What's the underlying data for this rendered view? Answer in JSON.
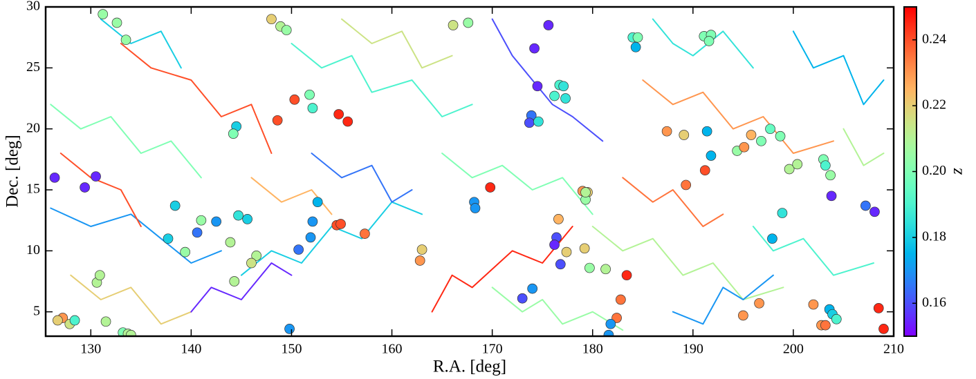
{
  "chart_data": {
    "type": "scatter",
    "xlabel": "R.A. [deg]",
    "ylabel": "Dec. [deg]",
    "xlim": [
      125.5,
      210
    ],
    "ylim": [
      3,
      30
    ],
    "xticks": [
      130,
      140,
      150,
      160,
      170,
      180,
      190,
      200,
      210
    ],
    "yticks": [
      5,
      10,
      15,
      20,
      25,
      30
    ],
    "colormap": "rainbow",
    "colorbar": {
      "label": "z",
      "lim": [
        0.15,
        0.25
      ],
      "ticks": [
        0.16,
        0.18,
        {
          "value": 0.2,
          "label": "0.20"
        },
        0.22,
        0.24
      ]
    },
    "points": {
      "x": [
        131.2,
        132.6,
        133.5,
        126.4,
        129.4,
        130.5,
        138.4,
        137.7,
        140.6,
        141.0,
        142.5,
        139.4,
        143.9,
        144.7,
        145.6,
        146.5,
        146.0,
        144.3,
        130.6,
        130.9,
        131.5,
        144.5,
        144.2,
        148.0,
        148.9,
        149.5,
        148.6,
        150.3,
        151.8,
        152.1,
        154.7,
        155.6,
        152.6,
        152.1,
        151.9,
        150.7,
        154.5,
        154.9,
        157.3,
        149.8,
        127.2,
        126.7,
        127.9,
        128.4,
        133.2,
        133.7,
        134.0,
        163.0,
        162.8,
        166.1,
        167.6,
        168.2,
        168.3,
        169.8,
        175.6,
        174.2,
        174.5,
        173.9,
        173.7,
        174.6,
        176.7,
        177.1,
        176.2,
        177.3,
        179.0,
        179.5,
        179.3,
        179.3,
        176.6,
        176.4,
        176.2,
        177.4,
        179.2,
        176.8,
        179.7,
        181.3,
        183.4,
        174.0,
        173.0,
        182.8,
        182.4,
        181.8,
        181.6,
        184.0,
        184.5,
        184.3,
        187.4,
        189.1,
        191.4,
        191.8,
        191.2,
        189.3,
        191.1,
        191.8,
        191.6,
        194.4,
        195.1,
        195.8,
        196.8,
        197.7,
        198.7,
        199.6,
        200.4,
        203.0,
        203.2,
        203.7,
        203.8,
        207.2,
        208.1,
        198.9,
        197.9,
        195.0,
        196.6,
        202.0,
        202.8,
        203.2,
        203.6,
        203.9,
        204.3,
        208.5,
        209.0
      ],
      "y": [
        29.4,
        28.7,
        27.3,
        16.0,
        15.2,
        16.1,
        13.7,
        11.0,
        11.5,
        12.5,
        12.4,
        9.9,
        10.7,
        12.9,
        12.6,
        9.6,
        9.0,
        7.5,
        7.4,
        8.0,
        4.2,
        20.2,
        19.6,
        29.0,
        28.4,
        28.1,
        20.7,
        22.4,
        22.8,
        21.7,
        21.2,
        20.6,
        14.0,
        12.4,
        11.1,
        10.1,
        12.1,
        12.2,
        11.4,
        3.6,
        4.5,
        4.3,
        4.0,
        4.3,
        3.3,
        3.2,
        3.1,
        10.1,
        9.2,
        28.5,
        28.7,
        14.0,
        13.5,
        15.2,
        28.5,
        26.6,
        23.5,
        21.1,
        20.5,
        20.6,
        23.6,
        23.5,
        22.7,
        22.5,
        14.9,
        14.8,
        14.2,
        14.8,
        12.6,
        11.1,
        10.5,
        9.9,
        10.2,
        8.9,
        8.6,
        8.5,
        8.0,
        6.9,
        6.1,
        6.0,
        4.5,
        4.0,
        3.1,
        27.5,
        27.5,
        26.7,
        19.8,
        19.5,
        19.8,
        17.8,
        16.6,
        15.4,
        27.6,
        27.7,
        27.2,
        18.2,
        18.5,
        19.5,
        19.0,
        20.0,
        19.4,
        16.7,
        17.1,
        17.5,
        17.0,
        16.2,
        14.5,
        13.7,
        13.2,
        13.1,
        11.0,
        4.7,
        5.7,
        5.6,
        3.9,
        3.9,
        5.2,
        4.8,
        4.4,
        5.3,
        3.6
      ],
      "z": [
        0.205,
        0.205,
        0.205,
        0.155,
        0.155,
        0.155,
        0.18,
        0.18,
        0.165,
        0.205,
        0.17,
        0.205,
        0.21,
        0.185,
        0.18,
        0.21,
        0.215,
        0.21,
        0.21,
        0.21,
        0.21,
        0.18,
        0.2,
        0.22,
        0.21,
        0.205,
        0.24,
        0.24,
        0.2,
        0.19,
        0.245,
        0.245,
        0.175,
        0.17,
        0.17,
        0.165,
        0.24,
        0.24,
        0.235,
        0.17,
        0.23,
        0.22,
        0.215,
        0.19,
        0.2,
        0.21,
        0.21,
        0.22,
        0.23,
        0.215,
        0.205,
        0.17,
        0.17,
        0.245,
        0.155,
        0.155,
        0.155,
        0.165,
        0.16,
        0.185,
        0.19,
        0.185,
        0.19,
        0.185,
        0.23,
        0.22,
        0.205,
        0.21,
        0.225,
        0.16,
        0.155,
        0.22,
        0.22,
        0.16,
        0.205,
        0.21,
        0.245,
        0.17,
        0.16,
        0.235,
        0.235,
        0.17,
        0.17,
        0.19,
        0.2,
        0.175,
        0.23,
        0.22,
        0.175,
        0.175,
        0.24,
        0.235,
        0.2,
        0.2,
        0.2,
        0.205,
        0.23,
        0.225,
        0.2,
        0.195,
        0.2,
        0.21,
        0.21,
        0.2,
        0.19,
        0.205,
        0.155,
        0.165,
        0.155,
        0.185,
        0.175,
        0.23,
        0.23,
        0.23,
        0.23,
        0.235,
        0.175,
        0.18,
        0.19,
        0.245,
        0.245
      ]
    },
    "filaments": [
      {
        "z": 0.17,
        "x": [
          126,
          130,
          134,
          137,
          140,
          143
        ],
        "y": [
          13.5,
          12,
          13,
          11,
          9,
          10
        ]
      },
      {
        "z": 0.24,
        "x": [
          133,
          136,
          140,
          143,
          146,
          148
        ],
        "y": [
          27,
          25,
          24,
          21,
          22,
          18
        ]
      },
      {
        "z": 0.19,
        "x": [
          150,
          153,
          156,
          158,
          162,
          165,
          168
        ],
        "y": [
          27,
          25,
          26,
          23,
          24,
          21,
          22
        ]
      },
      {
        "z": 0.16,
        "x": [
          170,
          172,
          174,
          176,
          178,
          181
        ],
        "y": [
          29,
          26,
          24,
          22,
          21,
          19
        ]
      },
      {
        "z": 0.23,
        "x": [
          185,
          188,
          191,
          194,
          197,
          200,
          204
        ],
        "y": [
          24,
          22,
          23,
          20,
          21,
          18,
          19
        ]
      },
      {
        "z": 0.2,
        "x": [
          126,
          129,
          132,
          135,
          138,
          141
        ],
        "y": [
          22,
          20,
          21,
          18,
          19,
          16
        ]
      },
      {
        "z": 0.18,
        "x": [
          145,
          148,
          151,
          154,
          157,
          160,
          163
        ],
        "y": [
          8,
          10,
          9,
          12,
          11,
          14,
          13
        ]
      },
      {
        "z": 0.245,
        "x": [
          164,
          166,
          168,
          172,
          175,
          178
        ],
        "y": [
          5,
          8,
          7,
          10,
          9,
          12
        ]
      },
      {
        "z": 0.21,
        "x": [
          180,
          183,
          186,
          189,
          192,
          195,
          199
        ],
        "y": [
          12,
          10,
          11,
          8,
          9,
          6,
          7
        ]
      },
      {
        "z": 0.175,
        "x": [
          200,
          202,
          205,
          207,
          209
        ],
        "y": [
          28,
          25,
          26,
          22,
          24
        ]
      },
      {
        "z": 0.22,
        "x": [
          128,
          131,
          134,
          137,
          140
        ],
        "y": [
          8,
          6,
          7,
          4,
          5
        ]
      },
      {
        "z": 0.165,
        "x": [
          152,
          155,
          158,
          160,
          162
        ],
        "y": [
          18,
          16,
          17,
          14,
          15
        ]
      },
      {
        "z": 0.2,
        "x": [
          165,
          168,
          171,
          174,
          177,
          180
        ],
        "y": [
          18,
          16,
          17,
          15,
          16,
          13
        ]
      },
      {
        "z": 0.235,
        "x": [
          183,
          186,
          188,
          191,
          193
        ],
        "y": [
          16,
          14,
          15,
          12,
          13
        ]
      },
      {
        "z": 0.19,
        "x": [
          196,
          198,
          201,
          204,
          208
        ],
        "y": [
          12,
          10,
          11,
          8,
          9
        ]
      },
      {
        "z": 0.155,
        "x": [
          140,
          142,
          145,
          148,
          150
        ],
        "y": [
          5,
          7,
          6,
          9,
          8
        ]
      },
      {
        "z": 0.215,
        "x": [
          155,
          158,
          161,
          163,
          166
        ],
        "y": [
          29,
          27,
          28,
          25,
          26
        ]
      },
      {
        "z": 0.185,
        "x": [
          186,
          188,
          190,
          193,
          196
        ],
        "y": [
          29,
          27,
          26,
          28,
          25
        ]
      },
      {
        "z": 0.24,
        "x": [
          127,
          130,
          133,
          135
        ],
        "y": [
          18,
          16,
          15,
          12
        ]
      },
      {
        "z": 0.205,
        "x": [
          170,
          173,
          175,
          177,
          180,
          183
        ],
        "y": [
          7,
          5,
          6,
          4,
          5,
          3.5
        ]
      },
      {
        "z": 0.17,
        "x": [
          188,
          191,
          193,
          195,
          198
        ],
        "y": [
          5,
          4,
          7,
          6,
          8
        ]
      },
      {
        "z": 0.225,
        "x": [
          146,
          149,
          152,
          154
        ],
        "y": [
          16,
          14,
          15,
          13
        ]
      },
      {
        "z": 0.18,
        "x": [
          131,
          134,
          137,
          139
        ],
        "y": [
          29,
          27,
          28,
          25
        ]
      },
      {
        "z": 0.21,
        "x": [
          205,
          207,
          209
        ],
        "y": [
          20,
          17,
          18
        ]
      }
    ]
  }
}
